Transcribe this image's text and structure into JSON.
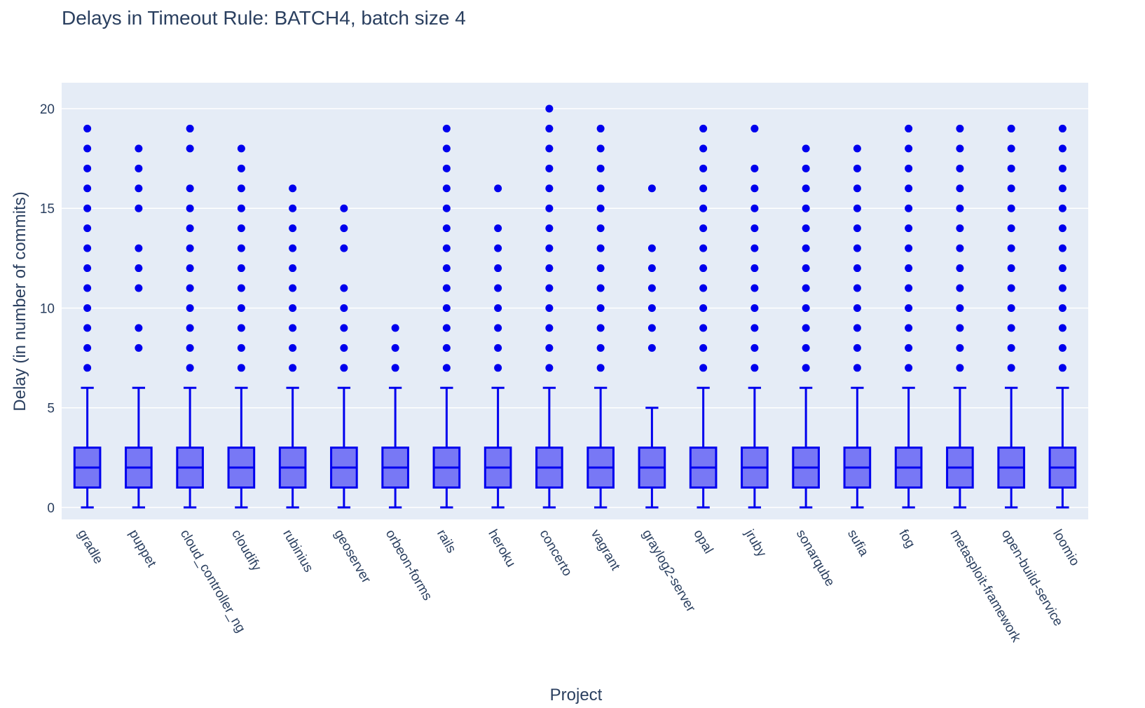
{
  "chart_data": {
    "type": "box",
    "title": "Delays in Timeout Rule: BATCH4, batch size 4",
    "xlabel": "Project",
    "ylabel": "Delay (in number of commits)",
    "ylim": [
      -0.6,
      21.3
    ],
    "yticks": [
      0,
      5,
      10,
      15,
      20
    ],
    "grid": true,
    "colors": {
      "plot_bg": "#e5ecf6",
      "grid": "#ffffff",
      "box_line": "#0000ee",
      "box_fill": "#7878f5",
      "marker": "#0000ee",
      "text": "#2a3f5f"
    },
    "categories": [
      "gradle",
      "puppet",
      "cloud_controller_ng",
      "cloudify",
      "rubinius",
      "geoserver",
      "orbeon-forms",
      "rails",
      "heroku",
      "concerto",
      "vagrant",
      "graylog2-server",
      "opal",
      "jruby",
      "sonarqube",
      "sufia",
      "fog",
      "metasploit-framework",
      "open-build-service",
      "loomio"
    ],
    "boxes": [
      {
        "min": 0,
        "q1": 1,
        "median": 2,
        "q3": 3,
        "max": 6,
        "outliers": [
          7,
          8,
          9,
          10,
          11,
          12,
          13,
          14,
          15,
          16,
          17,
          18,
          19
        ]
      },
      {
        "min": 0,
        "q1": 1,
        "median": 2,
        "q3": 3,
        "max": 6,
        "outliers": [
          8,
          9,
          11,
          12,
          13,
          15,
          16,
          17,
          18
        ]
      },
      {
        "min": 0,
        "q1": 1,
        "median": 2,
        "q3": 3,
        "max": 6,
        "outliers": [
          7,
          8,
          9,
          10,
          11,
          12,
          13,
          14,
          15,
          16,
          18,
          19
        ]
      },
      {
        "min": 0,
        "q1": 1,
        "median": 2,
        "q3": 3,
        "max": 6,
        "outliers": [
          7,
          8,
          9,
          10,
          11,
          12,
          13,
          14,
          15,
          16,
          17,
          18
        ]
      },
      {
        "min": 0,
        "q1": 1,
        "median": 2,
        "q3": 3,
        "max": 6,
        "outliers": [
          7,
          8,
          9,
          10,
          11,
          12,
          13,
          14,
          15,
          16
        ]
      },
      {
        "min": 0,
        "q1": 1,
        "median": 2,
        "q3": 3,
        "max": 6,
        "outliers": [
          7,
          8,
          9,
          10,
          11,
          13,
          14,
          15
        ]
      },
      {
        "min": 0,
        "q1": 1,
        "median": 2,
        "q3": 3,
        "max": 6,
        "outliers": [
          7,
          8,
          9
        ]
      },
      {
        "min": 0,
        "q1": 1,
        "median": 2,
        "q3": 3,
        "max": 6,
        "outliers": [
          7,
          8,
          9,
          10,
          11,
          12,
          13,
          14,
          15,
          16,
          17,
          18,
          19
        ]
      },
      {
        "min": 0,
        "q1": 1,
        "median": 2,
        "q3": 3,
        "max": 6,
        "outliers": [
          7,
          8,
          9,
          10,
          11,
          12,
          13,
          14,
          16
        ]
      },
      {
        "min": 0,
        "q1": 1,
        "median": 2,
        "q3": 3,
        "max": 6,
        "outliers": [
          7,
          8,
          9,
          10,
          11,
          12,
          13,
          14,
          15,
          16,
          17,
          18,
          19,
          20
        ]
      },
      {
        "min": 0,
        "q1": 1,
        "median": 2,
        "q3": 3,
        "max": 6,
        "outliers": [
          7,
          8,
          9,
          10,
          11,
          12,
          13,
          14,
          15,
          16,
          17,
          18,
          19
        ]
      },
      {
        "min": 0,
        "q1": 1,
        "median": 2,
        "q3": 3,
        "max": 5,
        "outliers": [
          8,
          9,
          10,
          11,
          12,
          13,
          16
        ]
      },
      {
        "min": 0,
        "q1": 1,
        "median": 2,
        "q3": 3,
        "max": 6,
        "outliers": [
          7,
          8,
          9,
          10,
          11,
          12,
          13,
          14,
          15,
          16,
          17,
          18,
          19
        ]
      },
      {
        "min": 0,
        "q1": 1,
        "median": 2,
        "q3": 3,
        "max": 6,
        "outliers": [
          7,
          8,
          9,
          10,
          11,
          12,
          13,
          14,
          15,
          16,
          17,
          19
        ]
      },
      {
        "min": 0,
        "q1": 1,
        "median": 2,
        "q3": 3,
        "max": 6,
        "outliers": [
          7,
          8,
          9,
          10,
          11,
          12,
          13,
          14,
          15,
          16,
          17,
          18
        ]
      },
      {
        "min": 0,
        "q1": 1,
        "median": 2,
        "q3": 3,
        "max": 6,
        "outliers": [
          7,
          8,
          9,
          10,
          11,
          12,
          13,
          14,
          15,
          16,
          17,
          18
        ]
      },
      {
        "min": 0,
        "q1": 1,
        "median": 2,
        "q3": 3,
        "max": 6,
        "outliers": [
          7,
          8,
          9,
          10,
          11,
          12,
          13,
          14,
          15,
          16,
          17,
          18,
          19
        ]
      },
      {
        "min": 0,
        "q1": 1,
        "median": 2,
        "q3": 3,
        "max": 6,
        "outliers": [
          7,
          8,
          9,
          10,
          11,
          12,
          13,
          14,
          15,
          16,
          17,
          18,
          19
        ]
      },
      {
        "min": 0,
        "q1": 1,
        "median": 2,
        "q3": 3,
        "max": 6,
        "outliers": [
          7,
          8,
          9,
          10,
          11,
          12,
          13,
          14,
          15,
          16,
          17,
          18,
          19
        ]
      },
      {
        "min": 0,
        "q1": 1,
        "median": 2,
        "q3": 3,
        "max": 6,
        "outliers": [
          7,
          8,
          9,
          10,
          11,
          12,
          13,
          14,
          15,
          16,
          17,
          18,
          19
        ]
      }
    ]
  }
}
